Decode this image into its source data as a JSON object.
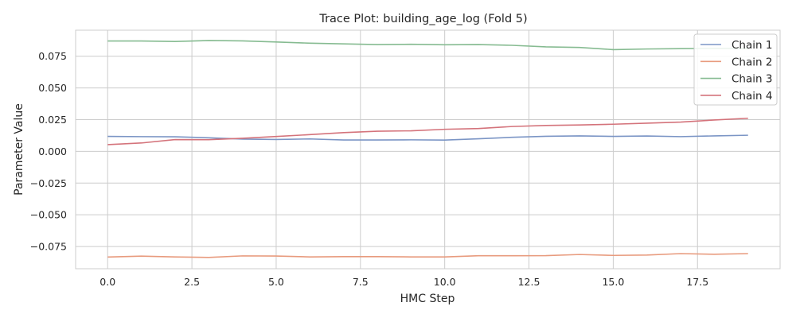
{
  "chart_data": {
    "type": "line",
    "title": "Trace Plot: building_age_log (Fold 5)",
    "xlabel": "HMC Step",
    "ylabel": "Parameter Value",
    "xlim": [
      -0.95,
      19.95
    ],
    "ylim": [
      -0.0925,
      0.0955
    ],
    "xticks": [
      0.0,
      2.5,
      5.0,
      7.5,
      10.0,
      12.5,
      15.0,
      17.5
    ],
    "xtick_labels": [
      "0.0",
      "2.5",
      "5.0",
      "7.5",
      "10.0",
      "12.5",
      "15.0",
      "17.5"
    ],
    "yticks": [
      -0.075,
      -0.05,
      -0.025,
      0.0,
      0.025,
      0.05,
      0.075
    ],
    "ytick_labels": [
      "−0.075",
      "−0.050",
      "−0.025",
      "0.000",
      "0.025",
      "0.050",
      "0.075"
    ],
    "grid": true,
    "legend_position": "top-right",
    "x": [
      0,
      1,
      2,
      3,
      4,
      5,
      6,
      7,
      8,
      9,
      10,
      11,
      12,
      13,
      14,
      15,
      16,
      17,
      18,
      19
    ],
    "series": [
      {
        "name": "Chain 1",
        "color": "#7b95c5",
        "values": [
          0.0118,
          0.0116,
          0.0115,
          0.0107,
          0.0097,
          0.0094,
          0.0098,
          0.009,
          0.009,
          0.0091,
          0.0089,
          0.0099,
          0.0111,
          0.0119,
          0.0122,
          0.0118,
          0.0121,
          0.0116,
          0.0122,
          0.0127
        ]
      },
      {
        "name": "Chain 2",
        "color": "#e89b7e",
        "values": [
          -0.0833,
          -0.0826,
          -0.0832,
          -0.0836,
          -0.0824,
          -0.0825,
          -0.0832,
          -0.083,
          -0.083,
          -0.0832,
          -0.0832,
          -0.0823,
          -0.0823,
          -0.0822,
          -0.0813,
          -0.082,
          -0.0817,
          -0.0806,
          -0.0811,
          -0.0806
        ]
      },
      {
        "name": "Chain 3",
        "color": "#86bb91",
        "values": [
          0.087,
          0.087,
          0.0866,
          0.0874,
          0.0871,
          0.0862,
          0.0853,
          0.0847,
          0.0842,
          0.0844,
          0.084,
          0.0842,
          0.0836,
          0.0824,
          0.0819,
          0.0802,
          0.0807,
          0.081,
          0.0812,
          0.0811
        ]
      },
      {
        "name": "Chain 4",
        "color": "#d4737b",
        "values": [
          0.0053,
          0.0066,
          0.0093,
          0.0092,
          0.0103,
          0.0117,
          0.0132,
          0.0148,
          0.0159,
          0.0162,
          0.0174,
          0.018,
          0.0196,
          0.0204,
          0.0208,
          0.0214,
          0.0222,
          0.0231,
          0.0247,
          0.0261
        ]
      }
    ]
  }
}
